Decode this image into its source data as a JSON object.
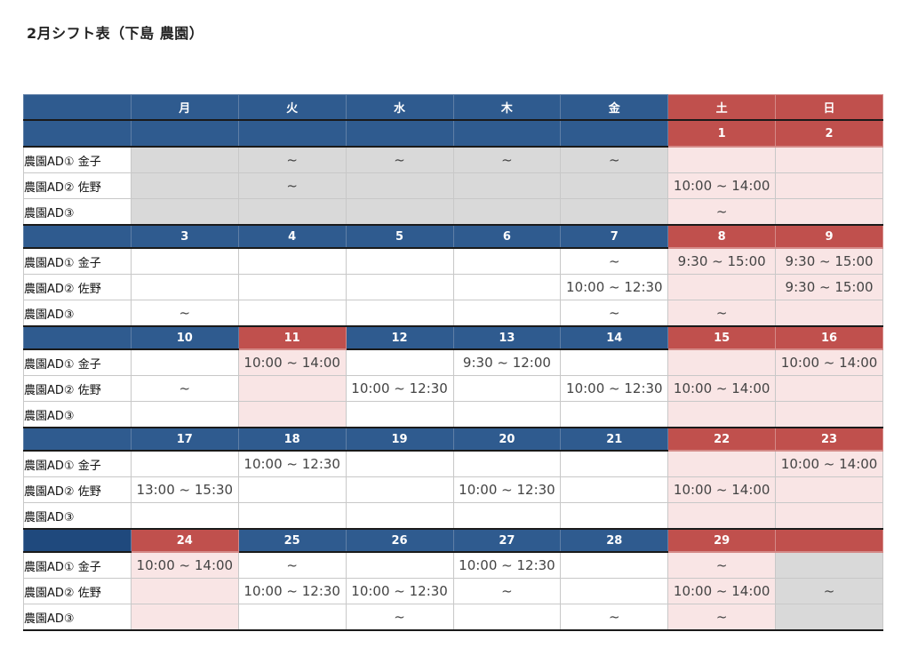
{
  "title": "2月シフト表（下島 農園）",
  "weekdays": [
    "月",
    "火",
    "水",
    "木",
    "金",
    "土",
    "日"
  ],
  "colors": {
    "header_blue": "#2f5b8f",
    "header_red": "#c0504d",
    "holiday_cell": "#f9e5e5",
    "blank_cell": "#d9d9d9"
  },
  "weeks": [
    {
      "dates": [
        "",
        "",
        "",
        "",
        "",
        "1",
        "2"
      ],
      "date_colors": [
        "blue",
        "blue",
        "blue",
        "blue",
        "blue",
        "red",
        "red"
      ],
      "rows": [
        {
          "name": "農園AD①  金子",
          "cells": [
            "",
            "~",
            "~",
            "~",
            "~",
            "",
            ""
          ],
          "bg": [
            "gray",
            "gray",
            "gray",
            "gray",
            "gray",
            "pink",
            "pink"
          ]
        },
        {
          "name": "農園AD②  佐野",
          "cells": [
            "",
            "~",
            "",
            "",
            "",
            "10:00 ~ 14:00",
            ""
          ],
          "bg": [
            "gray",
            "gray",
            "gray",
            "gray",
            "gray",
            "pink",
            "pink"
          ]
        },
        {
          "name": "農園AD③",
          "cells": [
            "",
            "",
            "",
            "",
            "",
            "~",
            ""
          ],
          "bg": [
            "gray",
            "gray",
            "gray",
            "gray",
            "gray",
            "pink",
            "pink"
          ]
        }
      ]
    },
    {
      "dates": [
        "3",
        "4",
        "5",
        "6",
        "7",
        "8",
        "9"
      ],
      "date_colors": [
        "blue",
        "blue",
        "blue",
        "blue",
        "blue",
        "red",
        "red"
      ],
      "rows": [
        {
          "name": "農園AD①  金子",
          "cells": [
            "",
            "",
            "",
            "",
            "~",
            "9:30  ~ 15:00",
            "9:30  ~ 15:00"
          ],
          "bg": [
            "",
            "",
            "",
            "",
            "",
            "pink",
            "pink"
          ]
        },
        {
          "name": "農園AD②  佐野",
          "cells": [
            "",
            "",
            "",
            "",
            "10:00 ~ 12:30",
            "",
            "9:30  ~ 15:00"
          ],
          "bg": [
            "",
            "",
            "",
            "",
            "",
            "pink",
            "pink"
          ]
        },
        {
          "name": "農園AD③",
          "cells": [
            "~",
            "",
            "",
            "",
            "~",
            "~",
            ""
          ],
          "bg": [
            "",
            "",
            "",
            "",
            "",
            "pink",
            "pink"
          ]
        }
      ]
    },
    {
      "dates": [
        "10",
        "11",
        "12",
        "13",
        "14",
        "15",
        "16"
      ],
      "date_colors": [
        "blue",
        "red",
        "blue",
        "blue",
        "blue",
        "red",
        "red"
      ],
      "rows": [
        {
          "name": "農園AD①  金子",
          "cells": [
            "",
            "10:00 ~ 14:00",
            "",
            "9:30  ~ 12:00",
            "",
            "",
            "10:00 ~ 14:00"
          ],
          "bg": [
            "",
            "pink",
            "",
            "",
            "",
            "pink",
            "pink"
          ]
        },
        {
          "name": "農園AD②  佐野",
          "cells": [
            "~",
            "",
            "10:00 ~ 12:30",
            "",
            "10:00 ~ 12:30",
            "10:00 ~ 14:00",
            ""
          ],
          "bg": [
            "",
            "pink",
            "",
            "",
            "",
            "pink",
            "pink"
          ]
        },
        {
          "name": "農園AD③",
          "cells": [
            "",
            "",
            "",
            "",
            "",
            "",
            ""
          ],
          "bg": [
            "",
            "pink",
            "",
            "",
            "",
            "pink",
            "pink"
          ]
        }
      ]
    },
    {
      "dates": [
        "17",
        "18",
        "19",
        "20",
        "21",
        "22",
        "23"
      ],
      "date_colors": [
        "blue",
        "blue",
        "blue",
        "blue",
        "blue",
        "red",
        "red"
      ],
      "rows": [
        {
          "name": "農園AD①  金子",
          "cells": [
            "",
            "10:00 ~ 12:30",
            "",
            "",
            "",
            "",
            "10:00 ~ 14:00"
          ],
          "bg": [
            "",
            "",
            "",
            "",
            "",
            "pink",
            "pink"
          ]
        },
        {
          "name": "農園AD②  佐野",
          "cells": [
            "13:00 ~ 15:30",
            "",
            "",
            "10:00 ~ 12:30",
            "",
            "10:00 ~ 14:00",
            ""
          ],
          "bg": [
            "",
            "",
            "",
            "",
            "",
            "pink",
            "pink"
          ]
        },
        {
          "name": "農園AD③",
          "cells": [
            "",
            "",
            "",
            "",
            "",
            "",
            ""
          ],
          "bg": [
            "",
            "",
            "",
            "",
            "",
            "pink",
            "pink"
          ]
        }
      ]
    },
    {
      "dates": [
        "24",
        "25",
        "26",
        "27",
        "28",
        "29",
        ""
      ],
      "date_colors": [
        "red",
        "blue",
        "blue",
        "blue",
        "blue",
        "red",
        "red"
      ],
      "rows": [
        {
          "name": "農園AD①  金子",
          "cells": [
            "10:00 ~ 14:00",
            "~",
            "",
            "10:00 ~ 12:30",
            "",
            "~",
            ""
          ],
          "bg": [
            "pink",
            "",
            "",
            "",
            "",
            "pink",
            "gray"
          ]
        },
        {
          "name": "農園AD②  佐野",
          "cells": [
            "",
            "10:00 ~ 12:30",
            "10:00 ~ 12:30",
            "~",
            "",
            "10:00 ~ 14:00",
            "~"
          ],
          "bg": [
            "pink",
            "",
            "",
            "",
            "",
            "pink",
            "gray"
          ]
        },
        {
          "name": "農園AD③",
          "cells": [
            "",
            "",
            "~",
            "",
            "~",
            "~",
            ""
          ],
          "bg": [
            "pink",
            "",
            "",
            "",
            "",
            "pink",
            "gray"
          ]
        }
      ]
    }
  ]
}
